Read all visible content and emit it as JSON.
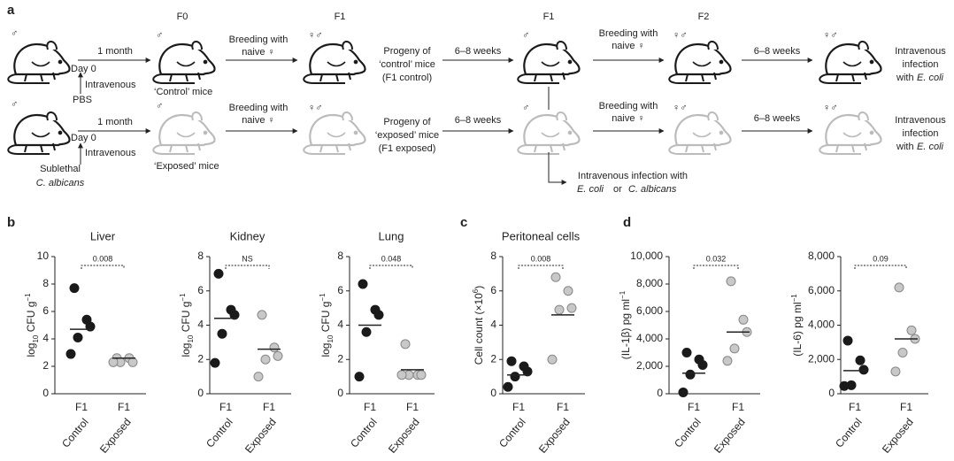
{
  "diagram": {
    "texts": [
      "a",
      "♂",
      "1 month",
      "Day 0",
      "Intravenous",
      "PBS",
      "F0",
      "♂",
      "‘Control’ mice",
      "Breeding with",
      "naive ♀",
      "F1",
      "♀♂",
      "Progeny of",
      "‘control’ mice",
      "(F1 control)",
      "6–8 weeks",
      "F1",
      "♂",
      "Breeding with",
      "naive ♀",
      "F2",
      "♀♂",
      "6–8 weeks",
      "♀♂",
      "Intravenous",
      "infection",
      "with",
      "E. coli",
      "♂",
      "1 month",
      "Day 0",
      "Intravenous",
      "Sublethal",
      "C. albicans",
      "♂",
      "‘Exposed’ mice",
      "Breeding with",
      "naive ♀",
      "♀♂",
      "Progeny of",
      "‘exposed’ mice",
      "(F1 exposed)",
      "6–8 weeks",
      "♂",
      "Breeding with",
      "naive ♀",
      "♀♂",
      "6–8 weeks",
      "♀♂",
      "Intravenous",
      "infection",
      "with",
      "E. coli",
      "Intravenous infection with",
      "E. coli",
      "or",
      "C. albicans"
    ],
    "panels": [
      "b",
      "c",
      "d"
    ]
  },
  "chart_data": [
    {
      "type": "scatter",
      "title": "Liver",
      "ylabel": [
        {
          "text": "log"
        },
        {
          "text": "10",
          "sub": true
        },
        {
          "text": " CFU g"
        },
        {
          "text": "−1",
          "sup": true
        }
      ],
      "ylim": [
        0,
        10
      ],
      "yticks": [
        0,
        2,
        4,
        6,
        8,
        10
      ],
      "generation": "F1",
      "categories": [
        "Control",
        "Exposed"
      ],
      "significance": "0.008",
      "series": [
        {
          "color": "#1a1a1a",
          "values": [
            7.7,
            5.4,
            4.9,
            4.1,
            2.9
          ],
          "mean": 4.7
        },
        {
          "color": "#c8c8c8",
          "values": [
            2.6,
            2.6,
            2.3,
            2.3,
            2.3
          ],
          "mean": 2.6
        }
      ]
    },
    {
      "type": "scatter",
      "title": "Kidney",
      "ylabel": [
        {
          "text": "log"
        },
        {
          "text": "10",
          "sub": true
        },
        {
          "text": " CFU g"
        },
        {
          "text": "−1",
          "sup": true
        }
      ],
      "ylim": [
        0,
        8
      ],
      "yticks": [
        0,
        2,
        4,
        6,
        8
      ],
      "generation": "F1",
      "categories": [
        "Control",
        "Exposed"
      ],
      "significance": "NS",
      "series": [
        {
          "color": "#1a1a1a",
          "values": [
            7.0,
            4.9,
            4.6,
            3.5,
            1.8
          ],
          "mean": 4.4
        },
        {
          "color": "#c8c8c8",
          "values": [
            4.6,
            2.7,
            2.2,
            2.0,
            1.0
          ],
          "mean": 2.6
        }
      ]
    },
    {
      "type": "scatter",
      "title": "Lung",
      "ylabel": [
        {
          "text": "log"
        },
        {
          "text": "10",
          "sub": true
        },
        {
          "text": " CFU g"
        },
        {
          "text": "−1",
          "sup": true
        }
      ],
      "ylim": [
        0,
        8
      ],
      "yticks": [
        0,
        2,
        4,
        6,
        8
      ],
      "generation": "F1",
      "categories": [
        "Control",
        "Exposed"
      ],
      "significance": "0.048",
      "series": [
        {
          "color": "#1a1a1a",
          "values": [
            6.4,
            4.9,
            4.6,
            3.6,
            1.0
          ],
          "mean": 4.0
        },
        {
          "color": "#c8c8c8",
          "values": [
            2.9,
            1.1,
            1.1,
            1.1,
            1.1
          ],
          "mean": 1.4
        }
      ]
    },
    {
      "type": "scatter",
      "title": "Peritoneal cells",
      "ylabel": [
        {
          "text": "Cell count (×10"
        },
        {
          "text": "6",
          "sup": true
        },
        {
          "text": ")"
        }
      ],
      "ylim": [
        0,
        8
      ],
      "yticks": [
        0,
        2,
        4,
        6,
        8
      ],
      "generation": "F1",
      "categories": [
        "Control",
        "Exposed"
      ],
      "significance": "0.008",
      "series": [
        {
          "color": "#1a1a1a",
          "values": [
            1.9,
            1.6,
            1.3,
            1.0,
            0.4
          ],
          "mean": 1.1
        },
        {
          "color": "#c8c8c8",
          "values": [
            6.8,
            6.0,
            5.0,
            4.9,
            2.0
          ],
          "mean": 4.6
        }
      ]
    },
    {
      "type": "scatter",
      "ylabel": [
        {
          "text": "(IL-1β) pg ml"
        },
        {
          "text": "−1",
          "sup": true
        }
      ],
      "ylim": [
        0,
        10000
      ],
      "yticks": [
        0,
        {
          "value": 2000,
          "label": "2,000"
        },
        {
          "value": 4000,
          "label": "4,000"
        },
        {
          "value": 6000,
          "label": "6,000"
        },
        {
          "value": 8000,
          "label": "8,000"
        },
        {
          "value": 10000,
          "label": "10,000"
        }
      ],
      "generation": "F1",
      "categories": [
        "Control",
        "Exposed"
      ],
      "significance": "0.032",
      "series": [
        {
          "color": "#1a1a1a",
          "values": [
            3000,
            2500,
            2100,
            1400,
            100
          ],
          "mean": 1500
        },
        {
          "color": "#c8c8c8",
          "values": [
            8200,
            5400,
            4500,
            3300,
            2400
          ],
          "mean": 4500
        }
      ]
    },
    {
      "type": "scatter",
      "ylabel": [
        {
          "text": "(IL-6) pg ml"
        },
        {
          "text": "−1",
          "sup": true
        }
      ],
      "ylim": [
        0,
        8000
      ],
      "yticks": [
        0,
        {
          "value": 2000,
          "label": "2,000"
        },
        {
          "value": 4000,
          "label": "4,000"
        },
        {
          "value": 6000,
          "label": "6,000"
        },
        {
          "value": 8000,
          "label": "8,000"
        }
      ],
      "generation": "F1",
      "categories": [
        "Control",
        "Exposed"
      ],
      "significance": "0.09",
      "series": [
        {
          "color": "#1a1a1a",
          "values": [
            3100,
            1950,
            1400,
            500,
            450
          ],
          "mean": 1350
        },
        {
          "color": "#c8c8c8",
          "values": [
            6200,
            3700,
            3200,
            2400,
            1300
          ],
          "mean": 3200
        }
      ]
    }
  ]
}
